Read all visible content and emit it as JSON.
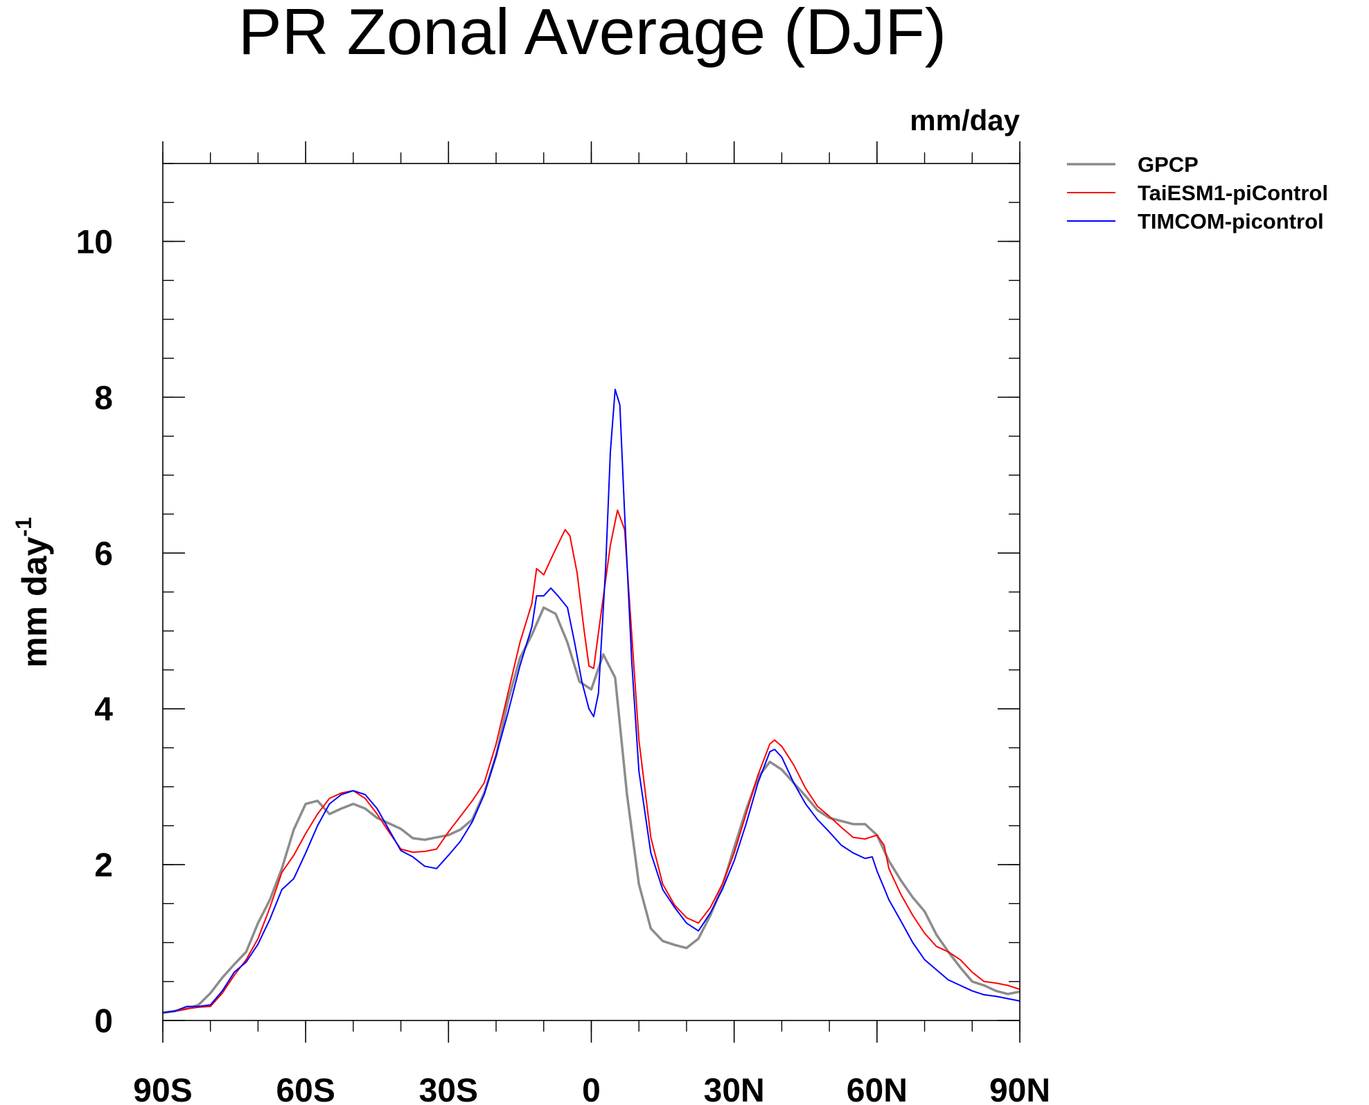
{
  "chart_data": {
    "type": "line",
    "title": "PR Zonal Average (DJF)",
    "units_label": "mm/day",
    "ylabel_main": "mm day",
    "ylabel_sup": "-1",
    "xlim": [
      -90,
      90
    ],
    "ylim": [
      0,
      11
    ],
    "x_ticks": [
      {
        "value": -90,
        "label": "90S"
      },
      {
        "value": -60,
        "label": "60S"
      },
      {
        "value": -30,
        "label": "30S"
      },
      {
        "value": 0,
        "label": "0"
      },
      {
        "value": 30,
        "label": "30N"
      },
      {
        "value": 60,
        "label": "60N"
      },
      {
        "value": 90,
        "label": "90N"
      }
    ],
    "y_ticks": [
      {
        "value": 0,
        "label": "0"
      },
      {
        "value": 2,
        "label": "2"
      },
      {
        "value": 4,
        "label": "4"
      },
      {
        "value": 6,
        "label": "6"
      },
      {
        "value": 8,
        "label": "8"
      },
      {
        "value": 10,
        "label": "10"
      }
    ],
    "legend_position": "right, outside top",
    "series": [
      {
        "name": "GPCP",
        "color": "#8c8c8c",
        "points": [
          [
            -90,
            0.1
          ],
          [
            -87.5,
            0.12
          ],
          [
            -85,
            0.15
          ],
          [
            -82.5,
            0.2
          ],
          [
            -80,
            0.35
          ],
          [
            -77.5,
            0.55
          ],
          [
            -75,
            0.72
          ],
          [
            -72.5,
            0.88
          ],
          [
            -70,
            1.25
          ],
          [
            -67.5,
            1.55
          ],
          [
            -65,
            1.95
          ],
          [
            -62.5,
            2.45
          ],
          [
            -60,
            2.78
          ],
          [
            -57.5,
            2.82
          ],
          [
            -55,
            2.65
          ],
          [
            -52.5,
            2.72
          ],
          [
            -50,
            2.78
          ],
          [
            -47.5,
            2.72
          ],
          [
            -45,
            2.6
          ],
          [
            -42.5,
            2.53
          ],
          [
            -40,
            2.46
          ],
          [
            -37.5,
            2.34
          ],
          [
            -35,
            2.32
          ],
          [
            -32.5,
            2.35
          ],
          [
            -30,
            2.38
          ],
          [
            -27.5,
            2.45
          ],
          [
            -25,
            2.58
          ],
          [
            -22.5,
            2.92
          ],
          [
            -20,
            3.4
          ],
          [
            -17.5,
            4.1
          ],
          [
            -15,
            4.65
          ],
          [
            -12.5,
            4.95
          ],
          [
            -10,
            5.3
          ],
          [
            -7.5,
            5.22
          ],
          [
            -5,
            4.85
          ],
          [
            -2.5,
            4.35
          ],
          [
            0,
            4.25
          ],
          [
            2.5,
            4.7
          ],
          [
            5,
            4.4
          ],
          [
            7.5,
            2.9
          ],
          [
            10,
            1.75
          ],
          [
            12.5,
            1.18
          ],
          [
            15,
            1.02
          ],
          [
            17.5,
            0.97
          ],
          [
            20,
            0.93
          ],
          [
            22.5,
            1.05
          ],
          [
            25,
            1.35
          ],
          [
            27.5,
            1.72
          ],
          [
            30,
            2.22
          ],
          [
            32.5,
            2.7
          ],
          [
            35,
            3.12
          ],
          [
            37.5,
            3.32
          ],
          [
            40,
            3.22
          ],
          [
            42.5,
            3.05
          ],
          [
            45,
            2.88
          ],
          [
            47.5,
            2.7
          ],
          [
            50,
            2.6
          ],
          [
            52.5,
            2.56
          ],
          [
            55,
            2.52
          ],
          [
            57.5,
            2.52
          ],
          [
            60,
            2.38
          ],
          [
            62.5,
            2.05
          ],
          [
            65,
            1.8
          ],
          [
            67.5,
            1.58
          ],
          [
            70,
            1.4
          ],
          [
            72.5,
            1.1
          ],
          [
            75,
            0.88
          ],
          [
            77.5,
            0.68
          ],
          [
            80,
            0.5
          ],
          [
            82.5,
            0.45
          ],
          [
            85,
            0.38
          ],
          [
            87.5,
            0.34
          ],
          [
            90,
            0.37
          ]
        ]
      },
      {
        "name": "TaiESM1-piControl",
        "color": "#ff0000",
        "points": [
          [
            -90,
            0.1
          ],
          [
            -87.5,
            0.12
          ],
          [
            -85,
            0.15
          ],
          [
            -82.5,
            0.17
          ],
          [
            -80,
            0.18
          ],
          [
            -77.5,
            0.35
          ],
          [
            -75,
            0.58
          ],
          [
            -72.5,
            0.78
          ],
          [
            -70,
            1.05
          ],
          [
            -67.5,
            1.45
          ],
          [
            -65,
            1.9
          ],
          [
            -62.5,
            2.12
          ],
          [
            -60,
            2.4
          ],
          [
            -57.5,
            2.65
          ],
          [
            -55,
            2.85
          ],
          [
            -52.5,
            2.92
          ],
          [
            -50,
            2.95
          ],
          [
            -47.5,
            2.85
          ],
          [
            -45,
            2.65
          ],
          [
            -42.5,
            2.42
          ],
          [
            -40,
            2.2
          ],
          [
            -37.5,
            2.16
          ],
          [
            -35,
            2.17
          ],
          [
            -32.5,
            2.2
          ],
          [
            -30,
            2.42
          ],
          [
            -27.5,
            2.62
          ],
          [
            -25,
            2.82
          ],
          [
            -22.5,
            3.05
          ],
          [
            -20,
            3.55
          ],
          [
            -17.5,
            4.2
          ],
          [
            -15,
            4.85
          ],
          [
            -12.5,
            5.35
          ],
          [
            -11.5,
            5.8
          ],
          [
            -10,
            5.72
          ],
          [
            -8.5,
            5.92
          ],
          [
            -7.5,
            6.05
          ],
          [
            -5.5,
            6.3
          ],
          [
            -4.5,
            6.22
          ],
          [
            -3,
            5.75
          ],
          [
            -1.5,
            5.0
          ],
          [
            -0.5,
            4.55
          ],
          [
            0.5,
            4.52
          ],
          [
            2,
            5.2
          ],
          [
            4,
            6.1
          ],
          [
            5.5,
            6.55
          ],
          [
            7,
            6.3
          ],
          [
            8.5,
            4.95
          ],
          [
            10,
            3.6
          ],
          [
            12.5,
            2.35
          ],
          [
            15,
            1.75
          ],
          [
            17.5,
            1.48
          ],
          [
            20,
            1.32
          ],
          [
            22.5,
            1.25
          ],
          [
            25,
            1.45
          ],
          [
            27.5,
            1.75
          ],
          [
            30,
            2.15
          ],
          [
            32.5,
            2.65
          ],
          [
            35,
            3.15
          ],
          [
            37.5,
            3.55
          ],
          [
            38.5,
            3.6
          ],
          [
            40,
            3.52
          ],
          [
            42.5,
            3.28
          ],
          [
            45,
            2.98
          ],
          [
            47.5,
            2.75
          ],
          [
            50,
            2.62
          ],
          [
            52.5,
            2.48
          ],
          [
            55,
            2.35
          ],
          [
            57.5,
            2.33
          ],
          [
            60,
            2.38
          ],
          [
            61.5,
            2.25
          ],
          [
            62.5,
            1.95
          ],
          [
            65,
            1.62
          ],
          [
            67.5,
            1.35
          ],
          [
            70,
            1.12
          ],
          [
            72.5,
            0.95
          ],
          [
            75,
            0.88
          ],
          [
            77.5,
            0.78
          ],
          [
            80,
            0.62
          ],
          [
            82.5,
            0.5
          ],
          [
            85,
            0.48
          ],
          [
            87.5,
            0.45
          ],
          [
            90,
            0.4
          ]
        ]
      },
      {
        "name": "TIMCOM-picontrol",
        "color": "#0000ff",
        "points": [
          [
            -90,
            0.1
          ],
          [
            -87.5,
            0.12
          ],
          [
            -85,
            0.18
          ],
          [
            -82.5,
            0.18
          ],
          [
            -80,
            0.2
          ],
          [
            -77.5,
            0.38
          ],
          [
            -75,
            0.62
          ],
          [
            -72.5,
            0.75
          ],
          [
            -70,
            0.98
          ],
          [
            -67.5,
            1.3
          ],
          [
            -65,
            1.68
          ],
          [
            -62.5,
            1.82
          ],
          [
            -60,
            2.15
          ],
          [
            -57.5,
            2.5
          ],
          [
            -55,
            2.78
          ],
          [
            -52.5,
            2.9
          ],
          [
            -50,
            2.95
          ],
          [
            -47.5,
            2.9
          ],
          [
            -45,
            2.72
          ],
          [
            -42.5,
            2.45
          ],
          [
            -40,
            2.18
          ],
          [
            -37.5,
            2.1
          ],
          [
            -35,
            1.98
          ],
          [
            -32.5,
            1.95
          ],
          [
            -30,
            2.12
          ],
          [
            -27.5,
            2.3
          ],
          [
            -25,
            2.55
          ],
          [
            -22.5,
            2.9
          ],
          [
            -20,
            3.4
          ],
          [
            -17.5,
            3.95
          ],
          [
            -15,
            4.55
          ],
          [
            -12.5,
            5.05
          ],
          [
            -11.5,
            5.45
          ],
          [
            -10,
            5.45
          ],
          [
            -8.5,
            5.55
          ],
          [
            -7,
            5.45
          ],
          [
            -5,
            5.3
          ],
          [
            -3.5,
            4.85
          ],
          [
            -2,
            4.35
          ],
          [
            -0.5,
            4.0
          ],
          [
            0.5,
            3.9
          ],
          [
            1.5,
            4.2
          ],
          [
            3,
            5.8
          ],
          [
            4,
            7.3
          ],
          [
            5,
            8.1
          ],
          [
            6,
            7.9
          ],
          [
            7,
            6.5
          ],
          [
            8.5,
            4.6
          ],
          [
            10,
            3.2
          ],
          [
            12.5,
            2.15
          ],
          [
            15,
            1.68
          ],
          [
            17.5,
            1.45
          ],
          [
            20,
            1.25
          ],
          [
            22.5,
            1.15
          ],
          [
            25,
            1.38
          ],
          [
            27.5,
            1.68
          ],
          [
            30,
            2.05
          ],
          [
            32.5,
            2.52
          ],
          [
            35,
            3.05
          ],
          [
            37.5,
            3.45
          ],
          [
            38.5,
            3.48
          ],
          [
            40,
            3.38
          ],
          [
            42.5,
            3.05
          ],
          [
            45,
            2.78
          ],
          [
            47.5,
            2.58
          ],
          [
            50,
            2.42
          ],
          [
            52.5,
            2.25
          ],
          [
            55,
            2.15
          ],
          [
            57.5,
            2.08
          ],
          [
            59,
            2.1
          ],
          [
            60,
            1.92
          ],
          [
            61.5,
            1.7
          ],
          [
            62.5,
            1.55
          ],
          [
            65,
            1.28
          ],
          [
            67.5,
            1.0
          ],
          [
            70,
            0.78
          ],
          [
            72.5,
            0.65
          ],
          [
            75,
            0.52
          ],
          [
            77.5,
            0.45
          ],
          [
            80,
            0.38
          ],
          [
            82.5,
            0.33
          ],
          [
            85,
            0.31
          ],
          [
            87.5,
            0.28
          ],
          [
            90,
            0.25
          ]
        ]
      }
    ]
  }
}
